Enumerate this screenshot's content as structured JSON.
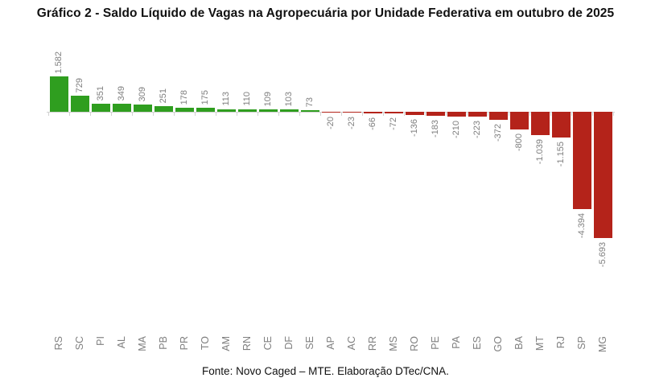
{
  "title": "Gráfico 2 - Saldo Líquido de Vagas na Agropecuária por Unidade Federativa em outubro de 2025",
  "footer": "Fonte: Novo Caged – MTE. Elaboração DTec/CNA.",
  "colors": {
    "positive": "#2f9e1f",
    "negative": "#b4231a",
    "value_label": "#7f7f7f",
    "axis": "#d2d2d2"
  },
  "chart_data": {
    "type": "bar",
    "title": "Gráfico 2 - Saldo Líquido de Vagas na Agropecuária por Unidade Federativa em outubro de 2025",
    "xlabel": "",
    "ylabel": "",
    "grid": false,
    "legend": false,
    "orientation": "vertical",
    "categories": [
      "RS",
      "SC",
      "PI",
      "AL",
      "MA",
      "PB",
      "PR",
      "TO",
      "AM",
      "RN",
      "CE",
      "DF",
      "SE",
      "AP",
      "AC",
      "RR",
      "MS",
      "RO",
      "PE",
      "PA",
      "ES",
      "GO",
      "BA",
      "MT",
      "RJ",
      "SP",
      "MG"
    ],
    "values": [
      1582,
      729,
      351,
      349,
      309,
      251,
      178,
      175,
      113,
      110,
      109,
      103,
      73,
      -20,
      -23,
      -66,
      -72,
      -136,
      -183,
      -210,
      -223,
      -372,
      -800,
      -1039,
      -1155,
      -4394,
      -5693
    ],
    "value_labels": [
      "1.582",
      "729",
      "351",
      "349",
      "309",
      "251",
      "178",
      "175",
      "113",
      "110",
      "109",
      "103",
      "73",
      "-20",
      "-23",
      "-66",
      "-72",
      "-136",
      "-183",
      "-210",
      "-223",
      "-372",
      "-800",
      "-1.039",
      "-1.155",
      "-4.394",
      "-5.693"
    ],
    "source": "Fonte: Novo Caged – MTE. Elaboração DTec/CNA."
  }
}
